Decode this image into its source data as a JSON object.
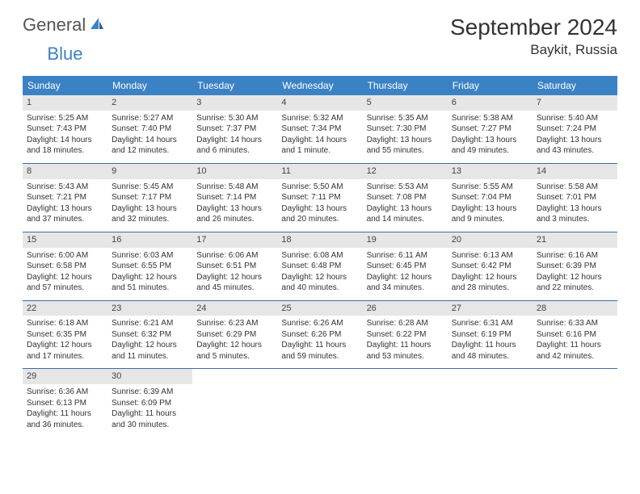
{
  "logo": {
    "textGray": "General",
    "textBlue": "Blue"
  },
  "title": "September 2024",
  "location": "Baykit, Russia",
  "headerColor": "#3b82c4",
  "dayHeaders": [
    "Sunday",
    "Monday",
    "Tuesday",
    "Wednesday",
    "Thursday",
    "Friday",
    "Saturday"
  ],
  "days": [
    {
      "n": "1",
      "sr": "5:25 AM",
      "ss": "7:43 PM",
      "dl": "14 hours and 18 minutes."
    },
    {
      "n": "2",
      "sr": "5:27 AM",
      "ss": "7:40 PM",
      "dl": "14 hours and 12 minutes."
    },
    {
      "n": "3",
      "sr": "5:30 AM",
      "ss": "7:37 PM",
      "dl": "14 hours and 6 minutes."
    },
    {
      "n": "4",
      "sr": "5:32 AM",
      "ss": "7:34 PM",
      "dl": "14 hours and 1 minute."
    },
    {
      "n": "5",
      "sr": "5:35 AM",
      "ss": "7:30 PM",
      "dl": "13 hours and 55 minutes."
    },
    {
      "n": "6",
      "sr": "5:38 AM",
      "ss": "7:27 PM",
      "dl": "13 hours and 49 minutes."
    },
    {
      "n": "7",
      "sr": "5:40 AM",
      "ss": "7:24 PM",
      "dl": "13 hours and 43 minutes."
    },
    {
      "n": "8",
      "sr": "5:43 AM",
      "ss": "7:21 PM",
      "dl": "13 hours and 37 minutes."
    },
    {
      "n": "9",
      "sr": "5:45 AM",
      "ss": "7:17 PM",
      "dl": "13 hours and 32 minutes."
    },
    {
      "n": "10",
      "sr": "5:48 AM",
      "ss": "7:14 PM",
      "dl": "13 hours and 26 minutes."
    },
    {
      "n": "11",
      "sr": "5:50 AM",
      "ss": "7:11 PM",
      "dl": "13 hours and 20 minutes."
    },
    {
      "n": "12",
      "sr": "5:53 AM",
      "ss": "7:08 PM",
      "dl": "13 hours and 14 minutes."
    },
    {
      "n": "13",
      "sr": "5:55 AM",
      "ss": "7:04 PM",
      "dl": "13 hours and 9 minutes."
    },
    {
      "n": "14",
      "sr": "5:58 AM",
      "ss": "7:01 PM",
      "dl": "13 hours and 3 minutes."
    },
    {
      "n": "15",
      "sr": "6:00 AM",
      "ss": "6:58 PM",
      "dl": "12 hours and 57 minutes."
    },
    {
      "n": "16",
      "sr": "6:03 AM",
      "ss": "6:55 PM",
      "dl": "12 hours and 51 minutes."
    },
    {
      "n": "17",
      "sr": "6:06 AM",
      "ss": "6:51 PM",
      "dl": "12 hours and 45 minutes."
    },
    {
      "n": "18",
      "sr": "6:08 AM",
      "ss": "6:48 PM",
      "dl": "12 hours and 40 minutes."
    },
    {
      "n": "19",
      "sr": "6:11 AM",
      "ss": "6:45 PM",
      "dl": "12 hours and 34 minutes."
    },
    {
      "n": "20",
      "sr": "6:13 AM",
      "ss": "6:42 PM",
      "dl": "12 hours and 28 minutes."
    },
    {
      "n": "21",
      "sr": "6:16 AM",
      "ss": "6:39 PM",
      "dl": "12 hours and 22 minutes."
    },
    {
      "n": "22",
      "sr": "6:18 AM",
      "ss": "6:35 PM",
      "dl": "12 hours and 17 minutes."
    },
    {
      "n": "23",
      "sr": "6:21 AM",
      "ss": "6:32 PM",
      "dl": "12 hours and 11 minutes."
    },
    {
      "n": "24",
      "sr": "6:23 AM",
      "ss": "6:29 PM",
      "dl": "12 hours and 5 minutes."
    },
    {
      "n": "25",
      "sr": "6:26 AM",
      "ss": "6:26 PM",
      "dl": "11 hours and 59 minutes."
    },
    {
      "n": "26",
      "sr": "6:28 AM",
      "ss": "6:22 PM",
      "dl": "11 hours and 53 minutes."
    },
    {
      "n": "27",
      "sr": "6:31 AM",
      "ss": "6:19 PM",
      "dl": "11 hours and 48 minutes."
    },
    {
      "n": "28",
      "sr": "6:33 AM",
      "ss": "6:16 PM",
      "dl": "11 hours and 42 minutes."
    },
    {
      "n": "29",
      "sr": "6:36 AM",
      "ss": "6:13 PM",
      "dl": "11 hours and 36 minutes."
    },
    {
      "n": "30",
      "sr": "6:39 AM",
      "ss": "6:09 PM",
      "dl": "11 hours and 30 minutes."
    }
  ],
  "labels": {
    "sunrise": "Sunrise: ",
    "sunset": "Sunset: ",
    "daylight": "Daylight: "
  }
}
